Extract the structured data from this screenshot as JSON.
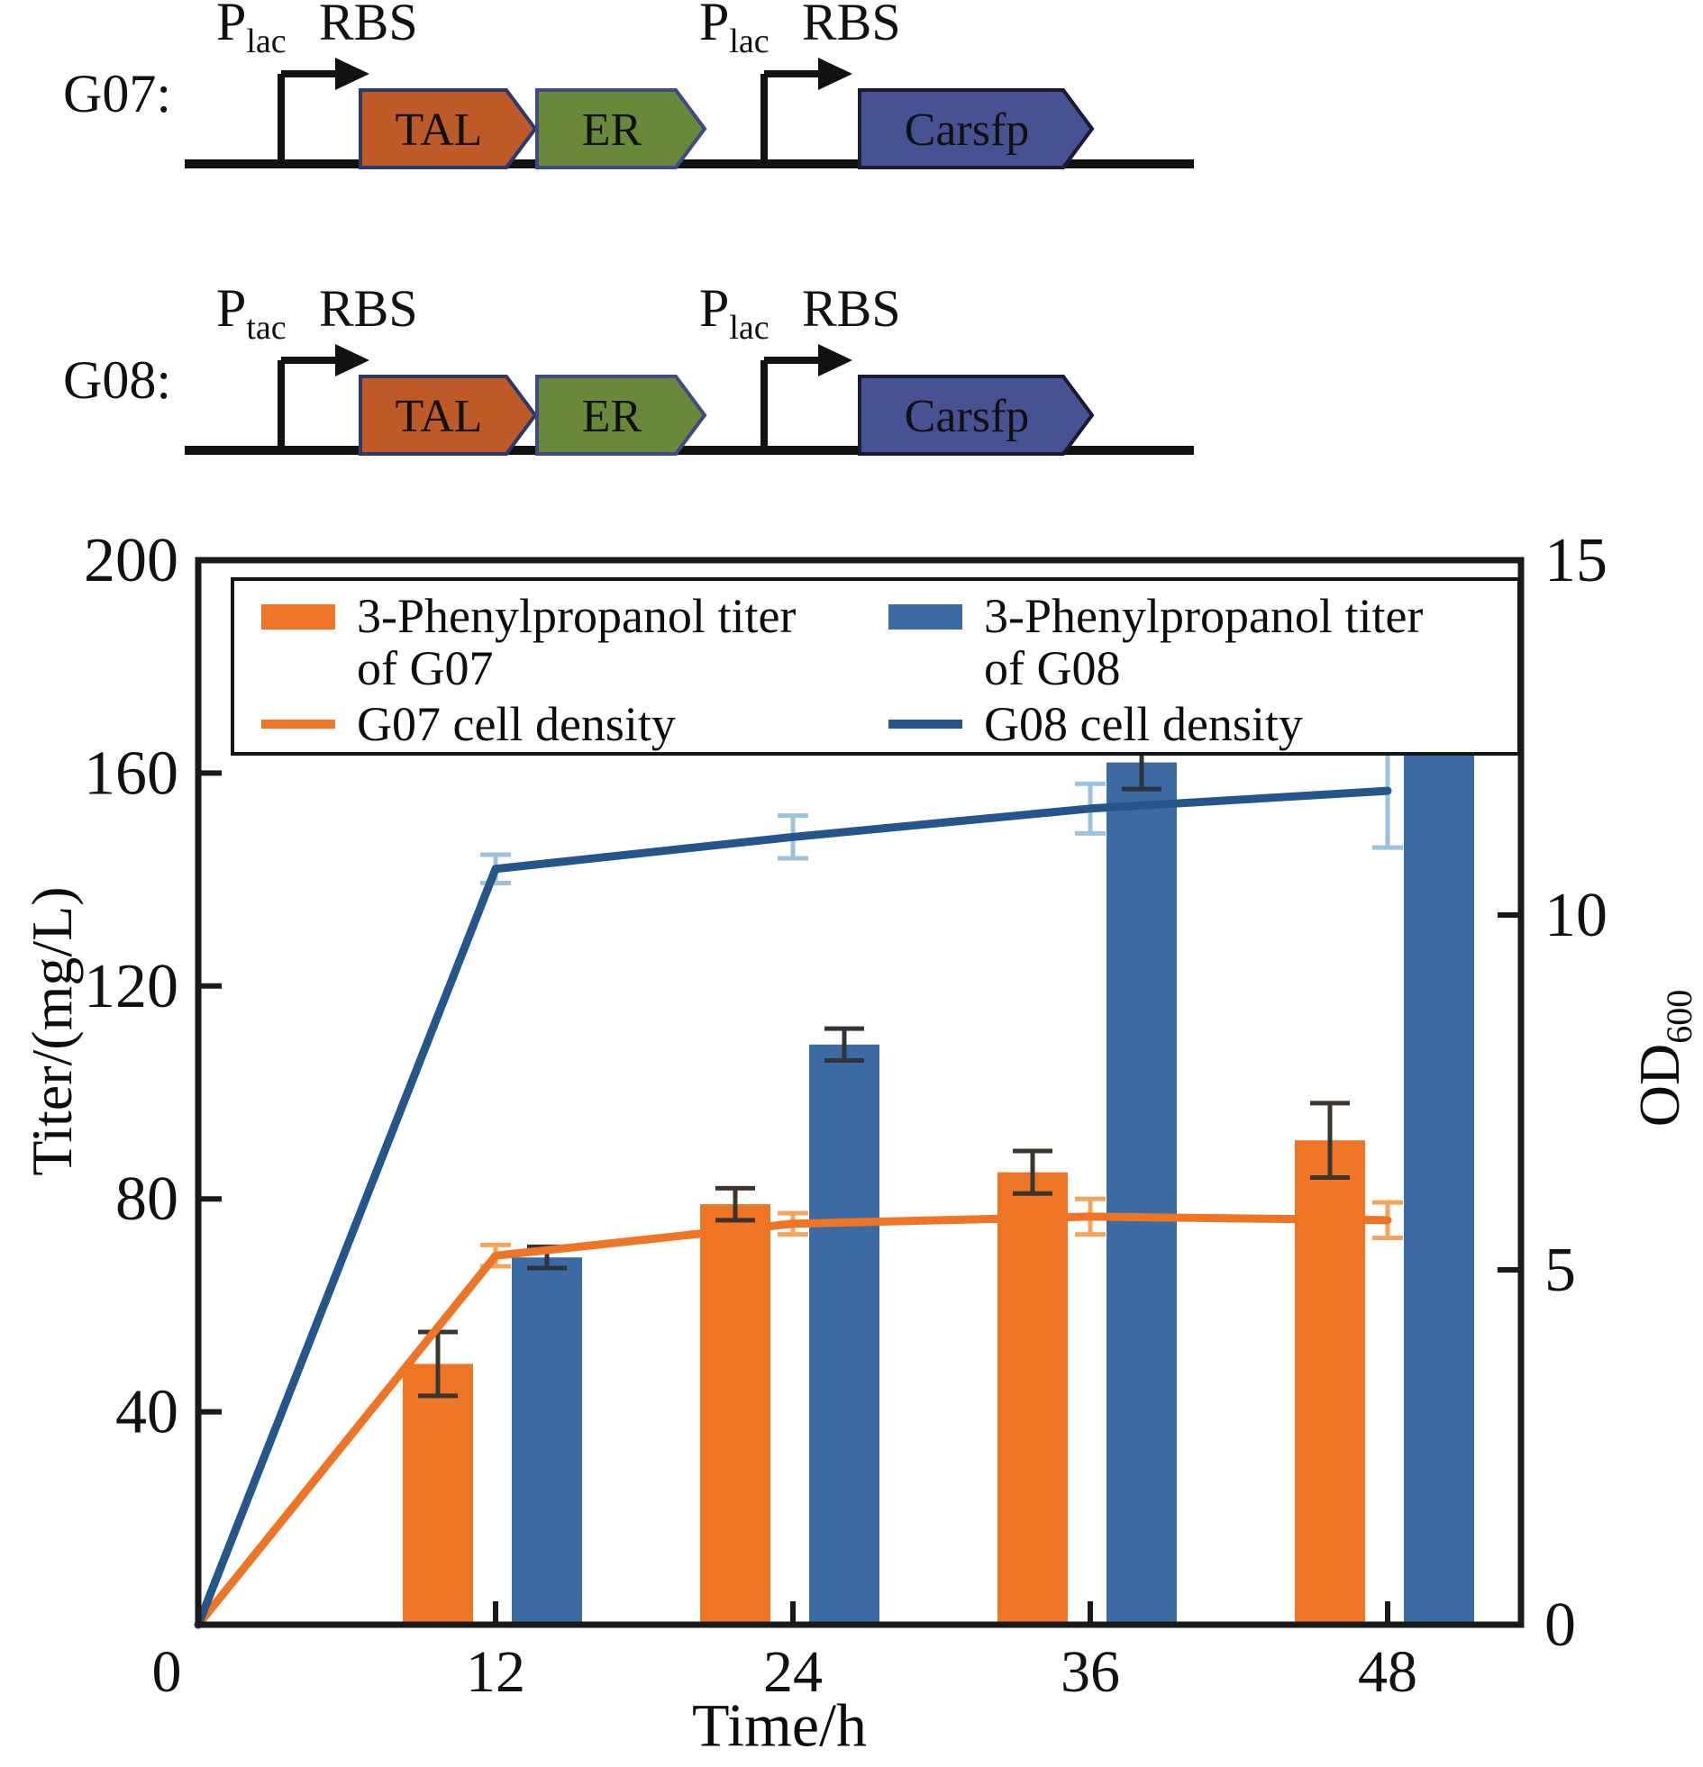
{
  "figure": {
    "background": "#ffffff"
  },
  "constructs": {
    "rows": [
      {
        "label": "G07:",
        "promoters": [
          {
            "symbol": "P",
            "subscript": "lac",
            "rbs": "RBS"
          },
          {
            "symbol": "P",
            "subscript": "lac",
            "rbs": "RBS"
          }
        ]
      },
      {
        "label": "G08:",
        "promoters": [
          {
            "symbol": "P",
            "subscript": "tac",
            "rbs": "RBS"
          },
          {
            "symbol": "P",
            "subscript": "lac",
            "rbs": "RBS"
          }
        ]
      }
    ],
    "genes": [
      {
        "name": "TAL",
        "fill": "#bd5a28",
        "border": "#2e3a65"
      },
      {
        "name": "ER",
        "fill": "#69893a",
        "border": "#3f4a84"
      },
      {
        "name": "Carsfp",
        "fill": "#475293",
        "border": "#1a1a33"
      }
    ],
    "colors": {
      "promoter_text": "#e63329",
      "row_label": "#8e211c",
      "dna": "#111111",
      "gene_text": "#ffffff",
      "rbs_text": "#111111"
    }
  },
  "chart_data": {
    "type": "bar+line dual-axis combo",
    "x": {
      "label": "Time/h",
      "ticks": [
        0,
        12,
        24,
        36,
        48
      ],
      "range": [
        0,
        53.5
      ]
    },
    "y_left": {
      "label": "Titer/(mg/L)",
      "ticks": [
        0,
        40,
        80,
        120,
        160,
        200
      ],
      "range": [
        0,
        200
      ]
    },
    "y_right": {
      "label": "OD",
      "sublabel": "600",
      "ticks": [
        0,
        5,
        10,
        15
      ],
      "range": [
        0,
        15
      ]
    },
    "grid": "off",
    "legend_position": "top-inside-box",
    "bar_series": [
      {
        "name": "3-Phenylpropanol titer of G07",
        "axis": "left",
        "color": "#ee7525",
        "x": [
          12,
          24,
          36,
          48
        ],
        "values": [
          49,
          79,
          85,
          91
        ],
        "errors": [
          6,
          3,
          4,
          7
        ],
        "error_color": "#3b3530"
      },
      {
        "name": "3-Phenylpropanol titer of G08",
        "axis": "left",
        "color": "#3c6aa3",
        "x": [
          12,
          24,
          36,
          48
        ],
        "values": [
          69,
          109,
          162,
          190
        ],
        "errors": [
          2,
          3,
          5,
          6
        ],
        "error_color": "#30343a"
      }
    ],
    "line_series": [
      {
        "name": "G07 cell density",
        "axis": "right",
        "color": "#ee7525",
        "x": [
          0,
          12,
          24,
          36,
          48
        ],
        "values": [
          0,
          5.2,
          5.65,
          5.75,
          5.7
        ],
        "errors": [
          0,
          0.15,
          0.15,
          0.25,
          0.25
        ],
        "error_color": "#f4a45c"
      },
      {
        "name": "G08 cell density",
        "axis": "right",
        "color": "#24568b",
        "x": [
          0,
          12,
          24,
          36,
          48
        ],
        "values": [
          0,
          10.65,
          11.1,
          11.5,
          11.75
        ],
        "errors": [
          0,
          0.2,
          0.3,
          0.35,
          0.8
        ],
        "error_color": "#9cc2de"
      }
    ]
  }
}
